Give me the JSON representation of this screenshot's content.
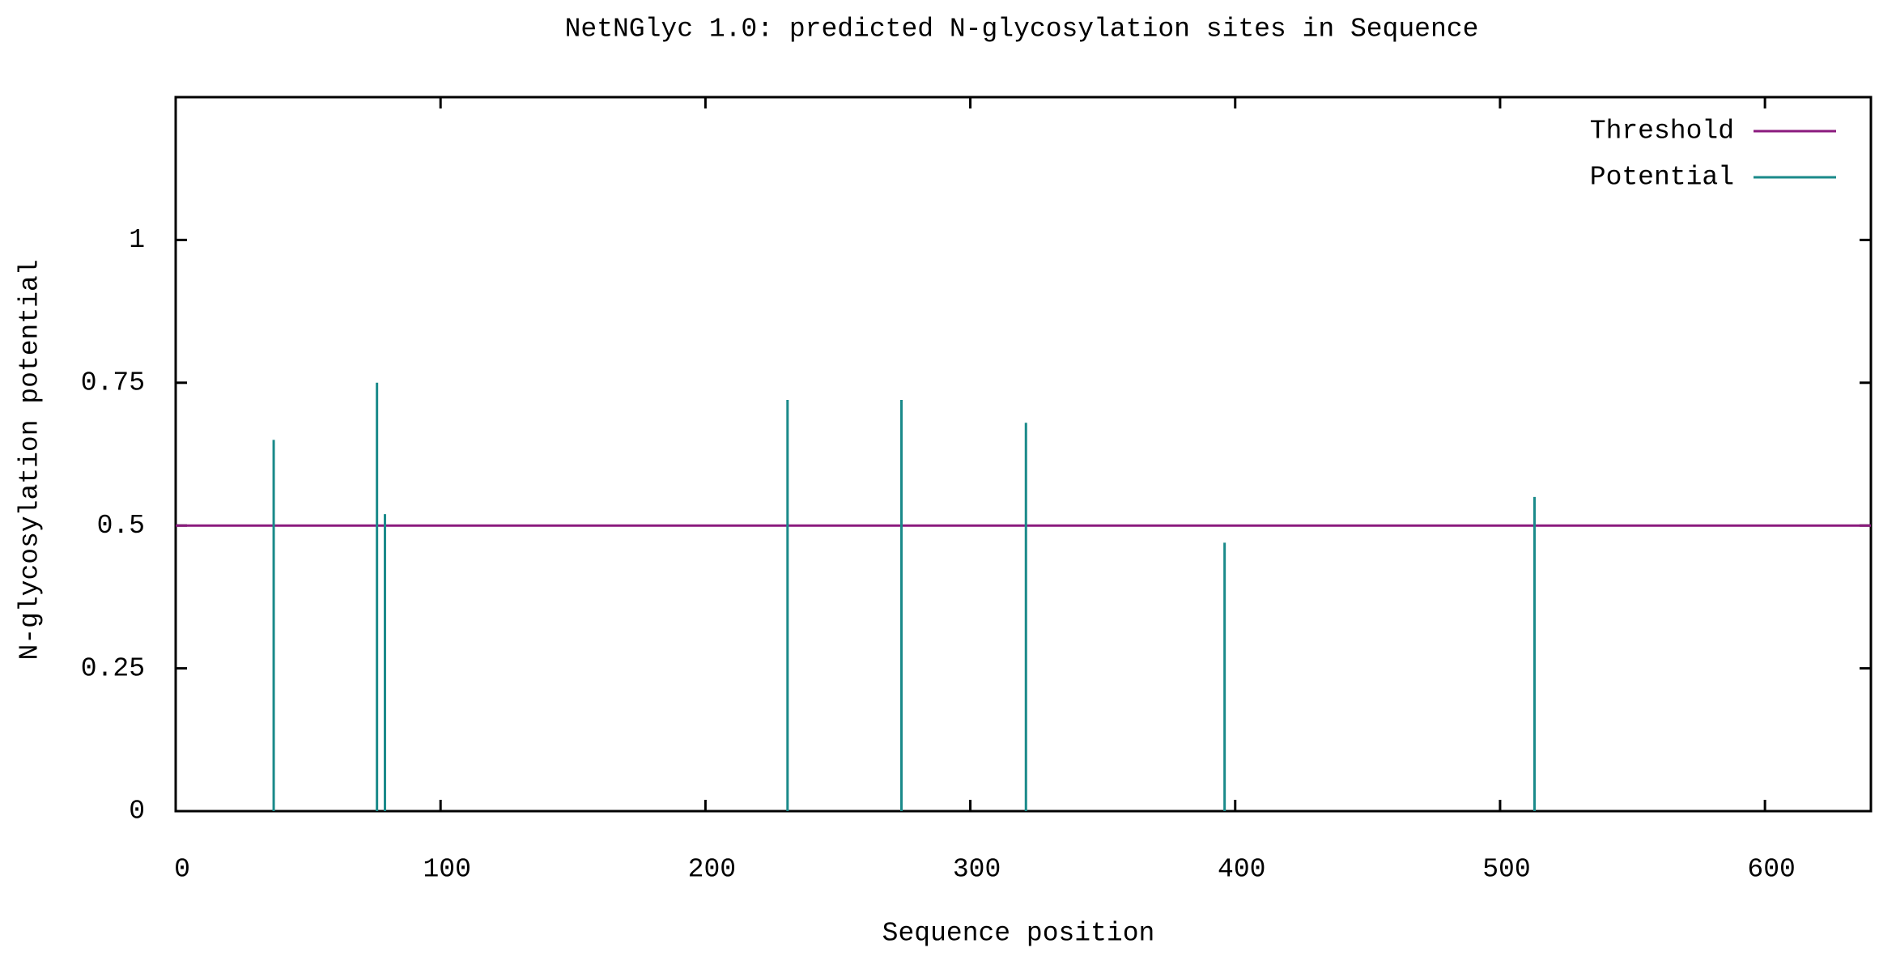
{
  "chart_data": {
    "type": "stem",
    "title": "NetNGlyc 1.0: predicted N-glycosylation sites in Sequence",
    "x_label": "Sequence position",
    "y_label": "N-glycosylation potential",
    "xlim": [
      0,
      640
    ],
    "xticks": [
      0,
      100,
      200,
      300,
      400,
      500,
      600
    ],
    "ylim": [
      0,
      1.25
    ],
    "yticks": [
      0,
      0.25,
      0.5,
      0.75,
      1
    ],
    "legend": "top-right",
    "series": [
      {
        "name": "Threshold",
        "type": "hline",
        "color": "#8b1a7e",
        "values": [
          0.5
        ]
      },
      {
        "name": "Potential",
        "type": "stem",
        "color": "#1a8a8a",
        "x": [
          37,
          76,
          79,
          231,
          274,
          321,
          396,
          513
        ],
        "values": [
          0.65,
          0.75,
          0.52,
          0.72,
          0.72,
          0.68,
          0.47,
          0.55
        ]
      }
    ]
  }
}
